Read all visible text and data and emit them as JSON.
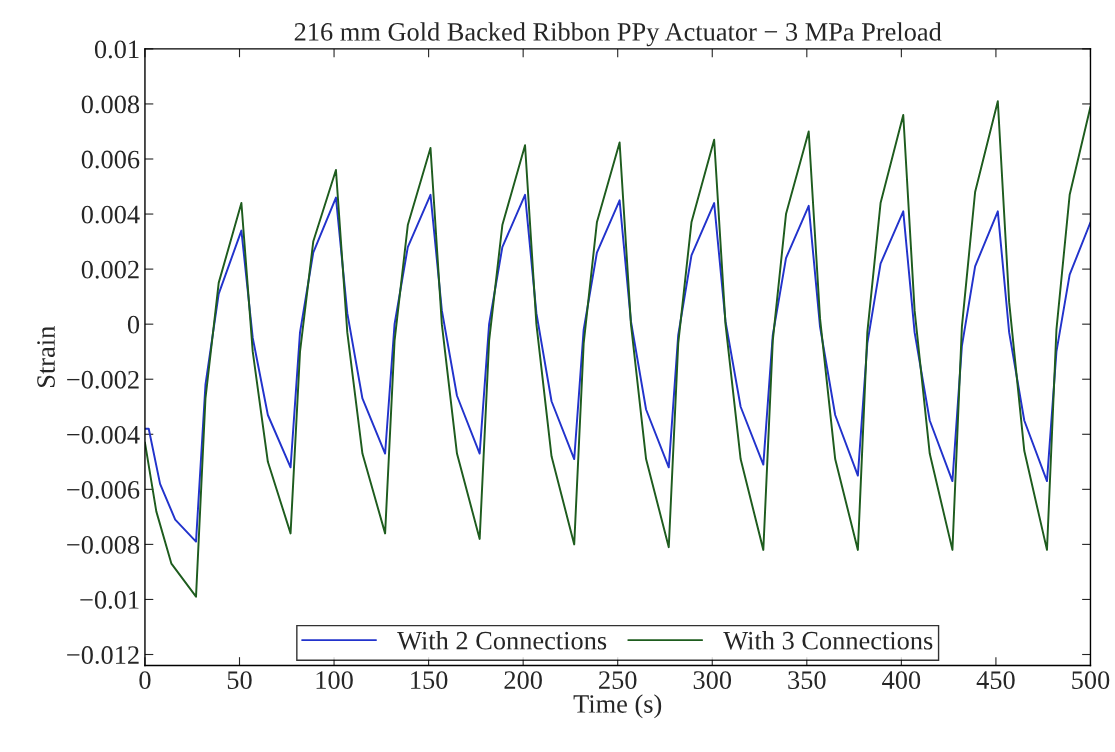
{
  "chart_data": {
    "type": "line",
    "title": "216 mm Gold Backed Ribbon PPy Actuator − 3 MPa Preload",
    "xlabel": "Time (s)",
    "ylabel": "Strain",
    "xlim": [
      0,
      500
    ],
    "xticks": [
      0,
      50,
      100,
      150,
      200,
      250,
      300,
      350,
      400,
      450,
      500
    ],
    "ylim": [
      -0.0124,
      0.01
    ],
    "yticks": [
      {
        "value": -0.012,
        "label": "−0.012"
      },
      {
        "value": -0.01,
        "label": "−0.01"
      },
      {
        "value": -0.008,
        "label": "−0.008"
      },
      {
        "value": -0.006,
        "label": "−0.006"
      },
      {
        "value": -0.004,
        "label": "−0.004"
      },
      {
        "value": -0.002,
        "label": "−0.002"
      },
      0,
      0.002,
      0.004,
      0.006,
      0.008,
      0.01
    ],
    "grid": false,
    "legend": "bottom",
    "marker": "none",
    "line_style": "solid",
    "series": [
      {
        "name": "With 2 Connections",
        "color": "#2233cc",
        "x": [
          0,
          2,
          8,
          16,
          27,
          32,
          39,
          51,
          57,
          65,
          77,
          82,
          89,
          101,
          107,
          115,
          127,
          132,
          139,
          151,
          157,
          165,
          177,
          182,
          189,
          201,
          207,
          215,
          227,
          232,
          239,
          251,
          257,
          265,
          277,
          282,
          289,
          301,
          307,
          315,
          327,
          332,
          339,
          351,
          357,
          365,
          377,
          382,
          389,
          401,
          407,
          415,
          427,
          432,
          439,
          451,
          457,
          465,
          477,
          482,
          489,
          500
        ],
        "values": [
          -0.0038,
          -0.0038,
          -0.0058,
          -0.0071,
          -0.0079,
          -0.0022,
          0.0011,
          0.0034,
          -0.0005,
          -0.0033,
          -0.0052,
          -0.0003,
          0.0026,
          0.0046,
          0.0004,
          -0.0027,
          -0.0047,
          0.0,
          0.0028,
          0.0047,
          0.0005,
          -0.0026,
          -0.0047,
          0.0,
          0.0028,
          0.0047,
          0.0004,
          -0.0028,
          -0.0049,
          -0.0002,
          0.0026,
          0.0045,
          0.0001,
          -0.0031,
          -0.0052,
          -0.0004,
          0.0025,
          0.0044,
          0.0001,
          -0.003,
          -0.0051,
          -0.0004,
          0.0024,
          0.0043,
          -0.0001,
          -0.0033,
          -0.0055,
          -0.0007,
          0.0022,
          0.0041,
          -0.0003,
          -0.0035,
          -0.0057,
          -0.0008,
          0.0021,
          0.0041,
          -0.0003,
          -0.0035,
          -0.0057,
          -0.001,
          0.0018,
          0.0037
        ]
      },
      {
        "name": "With 3 Connections",
        "color": "#1e5c1e",
        "x": [
          0,
          6,
          14,
          27,
          32,
          39,
          51,
          57,
          65,
          77,
          82,
          89,
          101,
          107,
          115,
          127,
          132,
          139,
          151,
          157,
          165,
          177,
          182,
          189,
          201,
          207,
          215,
          227,
          232,
          239,
          251,
          257,
          265,
          277,
          282,
          289,
          301,
          307,
          315,
          327,
          332,
          339,
          351,
          357,
          365,
          377,
          382,
          389,
          401,
          407,
          415,
          427,
          432,
          439,
          451,
          457,
          465,
          477,
          482,
          489,
          500
        ],
        "values": [
          -0.0043,
          -0.0068,
          -0.0087,
          -0.0099,
          -0.0027,
          0.0015,
          0.0044,
          -0.001,
          -0.005,
          -0.0076,
          -0.001,
          0.003,
          0.0056,
          -0.0003,
          -0.0047,
          -0.0076,
          -0.0006,
          0.0036,
          0.0064,
          0.0,
          -0.0047,
          -0.0078,
          -0.0006,
          0.0036,
          0.0065,
          0.0,
          -0.0048,
          -0.008,
          -0.0007,
          0.0037,
          0.0066,
          0.0,
          -0.0049,
          -0.0081,
          -0.0007,
          0.0037,
          0.0067,
          0.0,
          -0.0049,
          -0.0082,
          -0.0006,
          0.004,
          0.007,
          0.0002,
          -0.0049,
          -0.0082,
          -0.0003,
          0.0044,
          0.0076,
          0.0005,
          -0.0047,
          -0.0082,
          -0.0001,
          0.0048,
          0.0081,
          0.0008,
          -0.0046,
          -0.0082,
          -0.0002,
          0.0047,
          0.0079
        ]
      }
    ]
  }
}
